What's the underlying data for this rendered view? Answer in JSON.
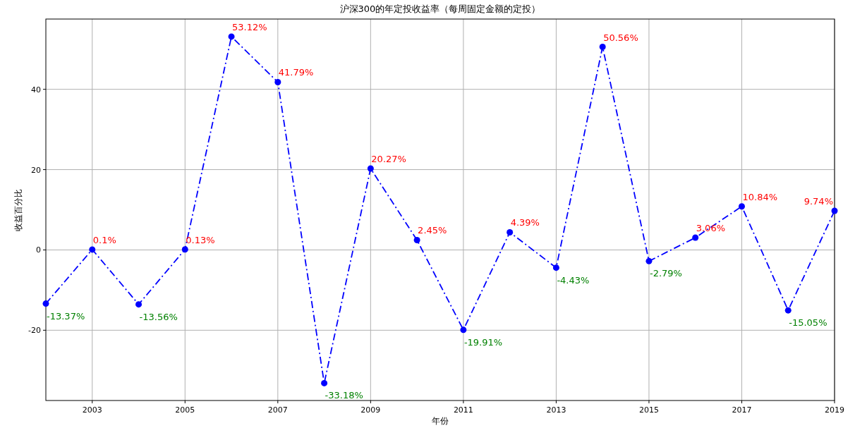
{
  "chart_data": {
    "type": "line",
    "title": "沪深300的年定投收益率（每周固定金额的定投）",
    "xlabel": "年份",
    "ylabel": "收益百分比",
    "x": [
      2002,
      2003,
      2004,
      2005,
      2006,
      2007,
      2008,
      2009,
      2010,
      2011,
      2012,
      2013,
      2014,
      2015,
      2016,
      2017,
      2018,
      2019
    ],
    "series": [
      {
        "color": "#0000ff",
        "marker": "circle",
        "line_style": "dashdot",
        "values": [
          -13.37,
          0.1,
          -13.56,
          0.13,
          53.12,
          41.79,
          -33.18,
          20.27,
          2.45,
          -19.91,
          4.39,
          -4.43,
          50.56,
          -2.79,
          3.06,
          10.84,
          -15.05,
          9.74
        ],
        "value_labels": [
          "-13.37%",
          "0.1%",
          "-13.56%",
          "0.13%",
          "53.12%",
          "41.79%",
          "-33.18%",
          "20.27%",
          "2.45%",
          "-19.91%",
          "4.39%",
          "-4.43%",
          "50.56%",
          "-2.79%",
          "3.06%",
          "10.84%",
          "-15.05%",
          "9.74%"
        ]
      }
    ],
    "xlim": [
      2002,
      2019
    ],
    "xticks": [
      2003,
      2005,
      2007,
      2009,
      2011,
      2013,
      2015,
      2017,
      2019
    ],
    "ylim": [
      -37.5,
      57.5
    ],
    "yticks": [
      -20,
      0,
      20,
      40
    ],
    "grid": true
  }
}
